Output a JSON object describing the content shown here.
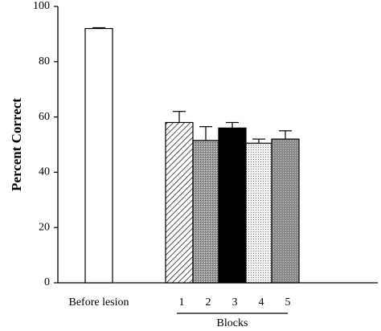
{
  "chart_data": {
    "type": "bar",
    "categories": [
      "Before lesion",
      "1",
      "2",
      "3",
      "4",
      "5"
    ],
    "values": [
      92,
      58,
      51.5,
      56,
      50.5,
      52
    ],
    "errors": [
      0.3,
      4,
      5,
      2,
      1.5,
      3
    ],
    "ylabel": "Percent  Correct",
    "group_label": "Blocks",
    "ylim": [
      0,
      100
    ],
    "yticks": [
      0,
      20,
      40,
      60,
      80,
      100
    ]
  }
}
